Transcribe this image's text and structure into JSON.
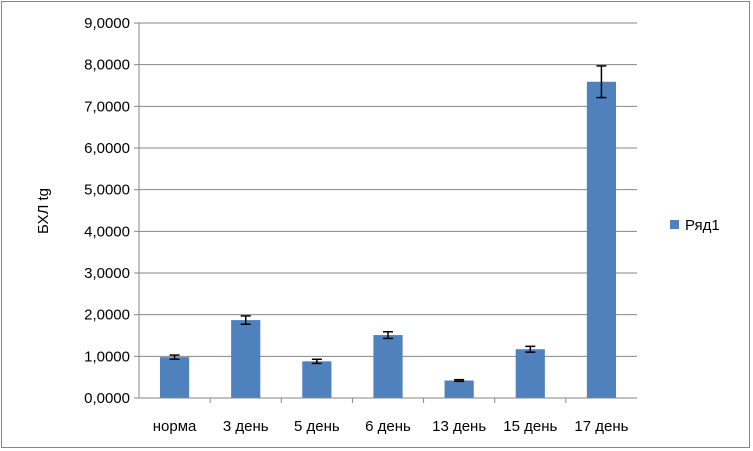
{
  "chart_data": {
    "type": "bar",
    "title": "",
    "xlabel": "",
    "ylabel": "БХЛ tg",
    "categories": [
      "норма",
      "3 день",
      "5 день",
      "6 день",
      "13 день",
      "15 день",
      "17 день"
    ],
    "series": [
      {
        "name": "Ряд1",
        "values": [
          0.98,
          1.87,
          0.88,
          1.51,
          0.42,
          1.17,
          7.59
        ],
        "errors": [
          0.05,
          0.1,
          0.05,
          0.08,
          0.02,
          0.07,
          0.38
        ]
      }
    ],
    "ylim": [
      0,
      9
    ],
    "yticks": [
      "0,0000",
      "1,0000",
      "2,0000",
      "3,0000",
      "4,0000",
      "5,0000",
      "6,0000",
      "7,0000",
      "8,0000",
      "9,0000"
    ],
    "grid": true,
    "legend_position": "right",
    "colors": {
      "bar": "#4F81BD",
      "gridline": "#868686",
      "axis": "#868686",
      "error_bar": "#000000"
    }
  }
}
